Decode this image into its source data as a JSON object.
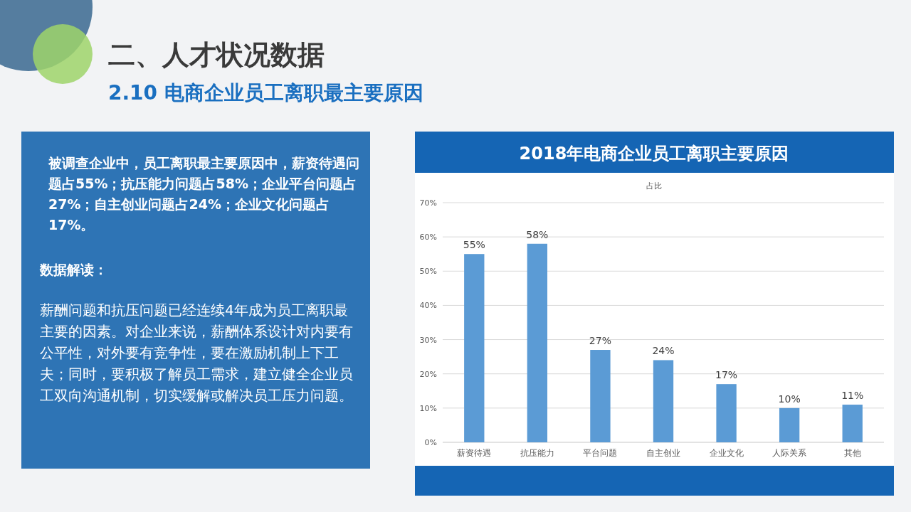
{
  "chart_data": [
    {
      "type": "other",
      "title": "二、人才状况数据",
      "subtitle": "2.10 电商企业员工离职最主要原因",
      "annotations": [
        "被调查企业中，员工离职最主要原因中，薪资待遇问题占55%；抗压能力问题占58%；企业平台问题占27%；自主创业问题占24%；企业文化问题占17%。",
        "数据解读：",
        "薪酬问题和抗压问题已经连续4年成为员工离职最主要的因素。对企业来说，薪酬体系设计对内要有公平性，对外要有竞争性，要在激励机制上下工夫；同时，要积极了解员工需求，建立健全企业员工双向沟通机制，切实缓解或解决员工压力问题。"
      ]
    },
    {
      "type": "bar",
      "title": "2018年电商企业员工离职主要原因",
      "subtitle": "占比",
      "categories": [
        "薪资待遇",
        "抗压能力",
        "平台问题",
        "自主创业",
        "企业文化",
        "人际关系",
        "其他"
      ],
      "values": [
        55,
        58,
        27,
        24,
        17,
        10,
        11
      ],
      "value_labels": [
        "55%",
        "58%",
        "27%",
        "24%",
        "17%",
        "10%",
        "11%"
      ],
      "color": "#5b9bd5",
      "ylim": [
        0,
        70
      ],
      "yticks": [
        {
          "value": 0,
          "label": "0%"
        },
        {
          "value": 10,
          "label": "10%"
        },
        {
          "value": 20,
          "label": "20%"
        },
        {
          "value": 30,
          "label": "30%"
        },
        {
          "value": 40,
          "label": "40%"
        },
        {
          "value": 50,
          "label": "50%"
        },
        {
          "value": 60,
          "label": "60%"
        },
        {
          "value": 70,
          "label": "70%"
        }
      ],
      "grid": "y"
    }
  ]
}
